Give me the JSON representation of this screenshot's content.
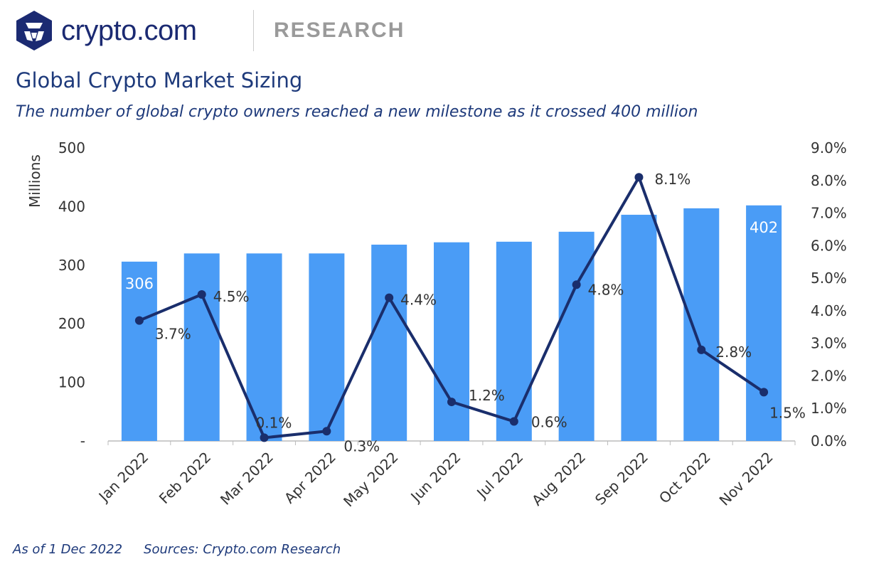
{
  "header": {
    "brand": "crypto.com",
    "section": "RESEARCH"
  },
  "title": "Global Crypto Market Sizing",
  "subtitle": "The number of global crypto owners reached a new milestone as it crossed 400 million",
  "footer": {
    "as_of": "As of 1 Dec 2022",
    "sources": "Sources: Crypto.com Research"
  },
  "colors": {
    "bars": "#4a9cf6",
    "line": "#1a2e6c",
    "title": "#1e3a7b"
  },
  "chart_data": {
    "type": "bar+line",
    "categories": [
      "Jan 2022",
      "Feb 2022",
      "Mar 2022",
      "Apr 2022",
      "May 2022",
      "Jun 2022",
      "Jul 2022",
      "Aug 2022",
      "Sep 2022",
      "Oct 2022",
      "Nov 2022"
    ],
    "series": [
      {
        "type": "bar",
        "axis": "left",
        "values": [
          306,
          320,
          320,
          320,
          335,
          339,
          340,
          357,
          386,
          397,
          402
        ],
        "data_labels": [
          "306",
          "",
          "",
          "",
          "",
          "",
          "",
          "",
          "",
          "",
          "402"
        ]
      },
      {
        "type": "line",
        "axis": "right",
        "values": [
          3.7,
          4.5,
          0.1,
          0.3,
          4.4,
          1.2,
          0.6,
          4.8,
          8.1,
          2.8,
          1.5
        ],
        "data_labels": [
          "3.7%",
          "4.5%",
          "0.1%",
          "0.3%",
          "4.4%",
          "1.2%",
          "0.6%",
          "4.8%",
          "8.1%",
          "2.8%",
          "1.5%"
        ]
      }
    ],
    "ylabel": "Millions",
    "ylim": [
      0,
      500
    ],
    "y_ticks": [
      "-",
      "100",
      "200",
      "300",
      "400",
      "500"
    ],
    "y2lim": [
      0,
      9
    ],
    "y2_ticks": [
      "0.0%",
      "1.0%",
      "2.0%",
      "3.0%",
      "4.0%",
      "5.0%",
      "6.0%",
      "7.0%",
      "8.0%",
      "9.0%"
    ],
    "grid": false,
    "legend": "none"
  }
}
